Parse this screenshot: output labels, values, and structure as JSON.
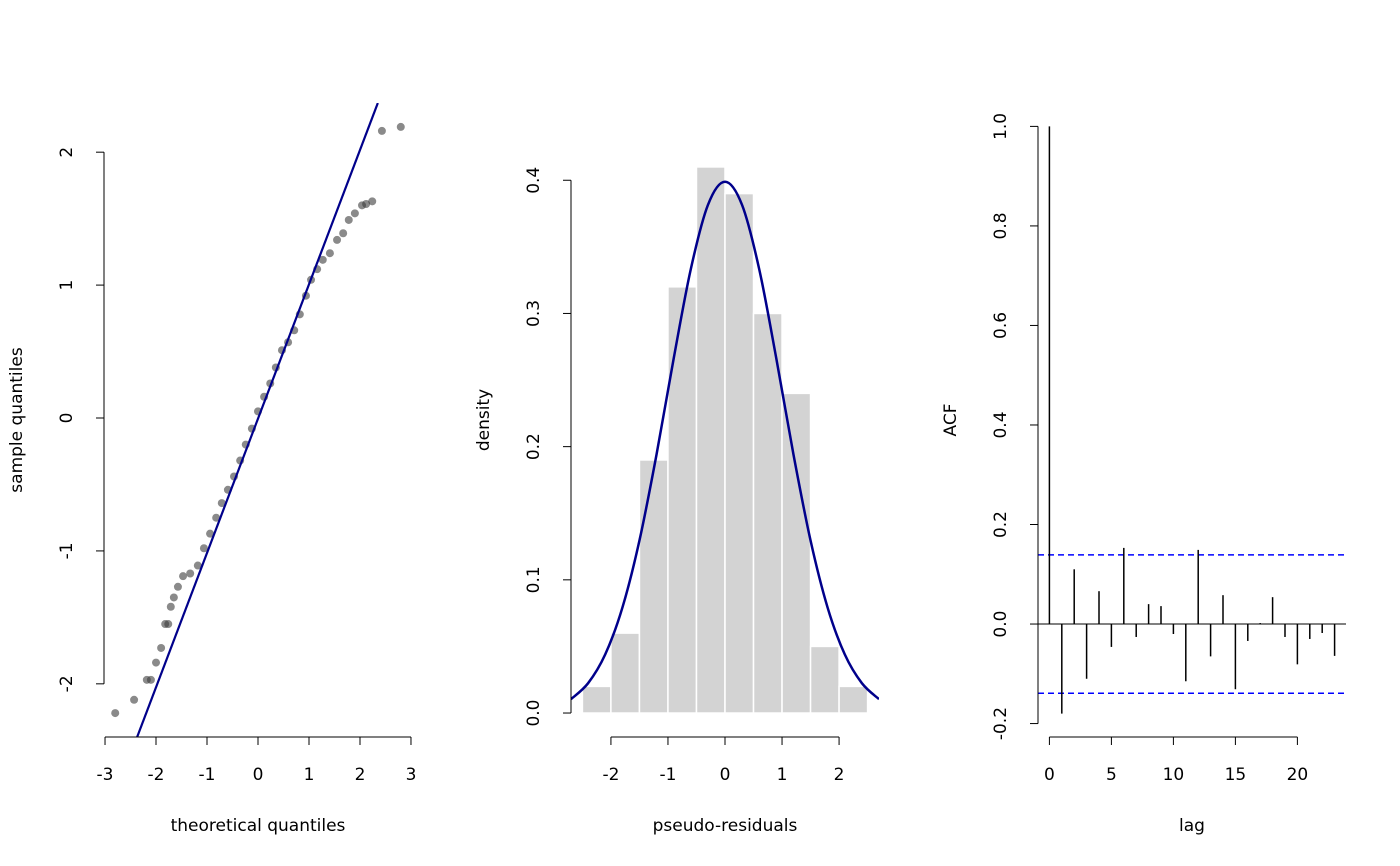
{
  "chart_data": [
    {
      "type": "scatter",
      "xlabel": "theoretical quantiles",
      "ylabel": "sample quantiles",
      "x": [
        -2.8,
        -2.43,
        -2.18,
        -2.1,
        -2.0,
        -1.9,
        -1.82,
        -1.76,
        -1.71,
        -1.65,
        -1.57,
        -1.47,
        -1.33,
        -1.18,
        -1.06,
        -0.94,
        -0.82,
        -0.71,
        -0.59,
        -0.47,
        -0.35,
        -0.24,
        -0.12,
        0.0,
        0.12,
        0.24,
        0.35,
        0.47,
        0.59,
        0.71,
        0.82,
        0.94,
        1.04,
        1.16,
        1.27,
        1.41,
        1.55,
        1.67,
        1.78,
        1.9,
        2.04,
        2.12,
        2.24,
        2.43,
        2.8
      ],
      "values": [
        -2.22,
        -2.12,
        -1.97,
        -1.97,
        -1.84,
        -1.73,
        -1.55,
        -1.55,
        -1.42,
        -1.35,
        -1.27,
        -1.19,
        -1.17,
        -1.11,
        -0.98,
        -0.87,
        -0.75,
        -0.64,
        -0.54,
        -0.44,
        -0.32,
        -0.2,
        -0.08,
        0.05,
        0.16,
        0.26,
        0.38,
        0.51,
        0.57,
        0.66,
        0.78,
        0.92,
        1.04,
        1.12,
        1.19,
        1.24,
        1.34,
        1.39,
        1.49,
        1.54,
        1.6,
        1.61,
        1.63,
        2.16,
        2.19
      ],
      "color": "rgba(60,60,60,0.6)",
      "line": {
        "x": [
          -2.37,
          2.35
        ],
        "values": [
          -2.4,
          2.37
        ],
        "color": "#00008b"
      },
      "xlim": [
        -3.02,
        3.02
      ],
      "ylim": [
        -2.4,
        2.37
      ],
      "xticks": [
        -3,
        -2,
        -1,
        0,
        1,
        2,
        3
      ],
      "yticks": [
        -2,
        -1,
        0,
        1,
        2
      ]
    },
    {
      "type": "histogram",
      "xlabel": "pseudo-residuals",
      "ylabel": "density",
      "bins": [
        -2.5,
        -2,
        -1.5,
        -1,
        -0.5,
        0,
        0.5,
        1,
        1.5,
        2,
        2.5
      ],
      "values": [
        0.02,
        0.06,
        0.19,
        0.32,
        0.41,
        0.39,
        0.3,
        0.24,
        0.05,
        0.02
      ],
      "color": "#d3d3d3",
      "curve": {
        "x": [
          -2.7,
          -2.4,
          -2.1,
          -1.8,
          -1.5,
          -1.2,
          -0.9,
          -0.6,
          -0.3,
          0,
          0.3,
          0.6,
          0.9,
          1.2,
          1.5,
          1.8,
          2.1,
          2.4,
          2.7
        ],
        "values": [
          0.0104,
          0.0224,
          0.044,
          0.079,
          0.1295,
          0.1942,
          0.2661,
          0.3332,
          0.3814,
          0.3989,
          0.3814,
          0.3332,
          0.2661,
          0.1942,
          0.1295,
          0.079,
          0.044,
          0.0224,
          0.0104
        ],
        "color": "#00008b"
      },
      "xlim": [
        -2.7,
        2.7
      ],
      "ylim": [
        -0.018,
        0.458
      ],
      "xticks": [
        -2,
        -1,
        0,
        1,
        2
      ],
      "yticks": [
        {
          "value": 0,
          "label": "0.0"
        },
        0.1,
        0.2,
        0.3,
        0.4
      ]
    },
    {
      "type": "acf",
      "xlabel": "lag",
      "ylabel": "ACF",
      "x": [
        0,
        1,
        2,
        3,
        4,
        5,
        6,
        7,
        8,
        9,
        10,
        11,
        12,
        13,
        14,
        15,
        16,
        17,
        18,
        19,
        20,
        21,
        22,
        23
      ],
      "values": [
        1.0,
        -0.18,
        0.11,
        -0.11,
        0.066,
        -0.046,
        0.153,
        -0.026,
        0.04,
        0.036,
        -0.02,
        -0.115,
        0.149,
        -0.065,
        0.058,
        -0.131,
        -0.034,
        0.002,
        0.054,
        -0.026,
        -0.081,
        -0.03,
        -0.018,
        -0.064
      ],
      "color": "#000000",
      "hlines": {
        "values": [
          0.139,
          -0.139
        ],
        "color": "#0000ff"
      },
      "xlim": [
        -0.92,
        23.92
      ],
      "ylim": [
        -0.227,
        1.047
      ],
      "xticks": [
        0,
        5,
        10,
        15,
        20
      ],
      "yticks": [
        -0.2,
        {
          "value": 0,
          "label": "0.0"
        },
        0.2,
        0.4,
        0.6,
        0.8,
        {
          "value": 1,
          "label": "1.0"
        }
      ]
    }
  ]
}
